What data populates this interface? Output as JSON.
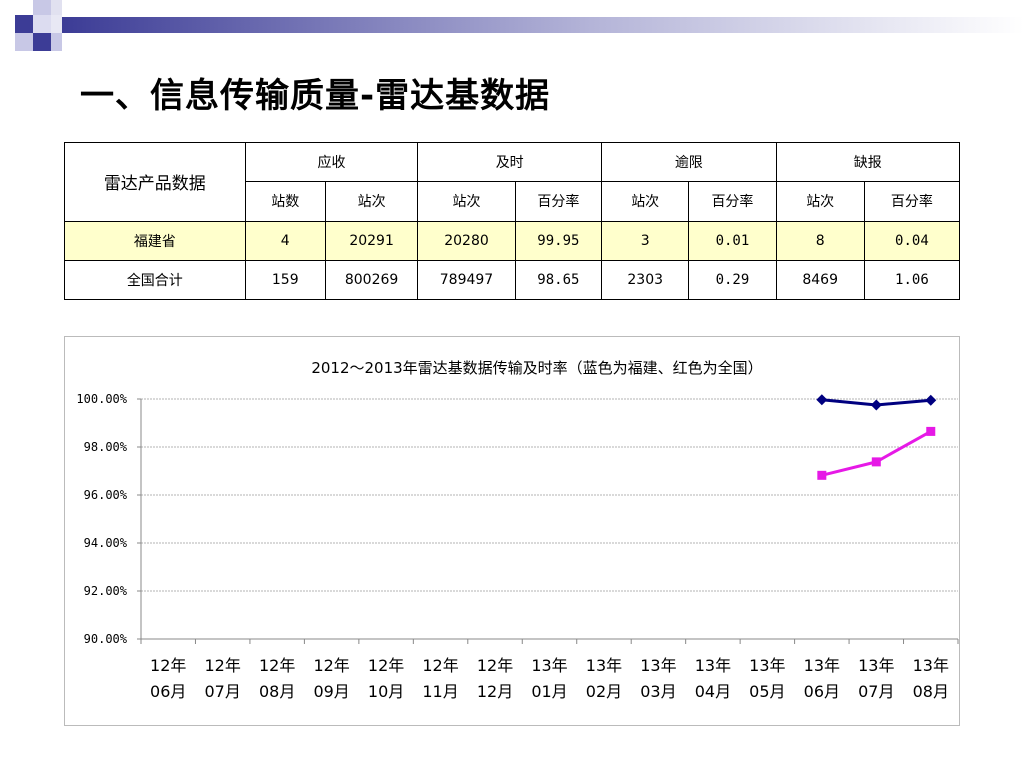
{
  "slide": {
    "title": "一、信息传输质量-雷达基数据"
  },
  "table": {
    "row_header": "雷达产品数据",
    "groups": [
      "应收",
      "及时",
      "逾限",
      "缺报"
    ],
    "subheaders": [
      "站数",
      "站次",
      "站次",
      "百分率",
      "站次",
      "百分率",
      "站次",
      "百分率"
    ],
    "rows": [
      {
        "name": "福建省",
        "values": [
          "4",
          "20291",
          "20280",
          "99.95",
          "3",
          "0.01",
          "8",
          "0.04"
        ]
      },
      {
        "name": "全国合计",
        "values": [
          "159",
          "800269",
          "789497",
          "98.65",
          "2303",
          "0.29",
          "8469",
          "1.06"
        ]
      }
    ]
  },
  "colors": {
    "highlight_row": "#ffffcc",
    "series_fujian": "#000080",
    "series_national": "#e619e6",
    "deco_purple": "#4b4ba0",
    "deco_light": "#c8c8e6"
  },
  "chart_data": {
    "type": "line",
    "title": "2012～2013年雷达基数据传输及时率（蓝色为福建、红色为全国）",
    "categories": [
      "12年06月",
      "12年07月",
      "12年08月",
      "12年09月",
      "12年10月",
      "12年11月",
      "12年12月",
      "13年01月",
      "13年02月",
      "13年03月",
      "13年04月",
      "13年05月",
      "13年06月",
      "13年07月",
      "13年08月"
    ],
    "category_lines": [
      [
        "12年",
        "06月"
      ],
      [
        "12年",
        "07月"
      ],
      [
        "12年",
        "08月"
      ],
      [
        "12年",
        "09月"
      ],
      [
        "12年",
        "10月"
      ],
      [
        "12年",
        "11月"
      ],
      [
        "12年",
        "12月"
      ],
      [
        "13年",
        "01月"
      ],
      [
        "13年",
        "02月"
      ],
      [
        "13年",
        "03月"
      ],
      [
        "13年",
        "04月"
      ],
      [
        "13年",
        "05月"
      ],
      [
        "13年",
        "06月"
      ],
      [
        "13年",
        "07月"
      ],
      [
        "13年",
        "08月"
      ]
    ],
    "series": [
      {
        "color": "#000080",
        "marker": "diamond",
        "values": [
          null,
          null,
          null,
          null,
          null,
          null,
          null,
          null,
          null,
          null,
          null,
          null,
          99.97,
          99.75,
          99.95
        ]
      },
      {
        "color": "#e619e6",
        "marker": "square",
        "values": [
          null,
          null,
          null,
          null,
          null,
          null,
          null,
          null,
          null,
          null,
          null,
          null,
          96.82,
          97.38,
          98.65
        ]
      }
    ],
    "ylim": [
      90,
      100
    ],
    "yticks": [
      "100.00%",
      "98.00%",
      "96.00%",
      "94.00%",
      "92.00%",
      "90.00%"
    ],
    "ytick_values": [
      100,
      98,
      96,
      94,
      92,
      90
    ],
    "grid": true,
    "legend": "none"
  }
}
